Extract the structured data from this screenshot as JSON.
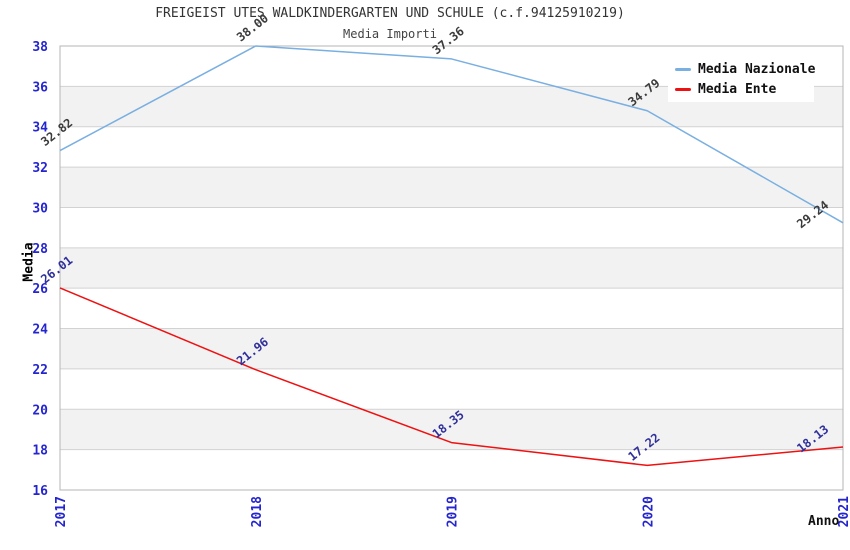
{
  "chart_data": {
    "type": "line",
    "title": "FREIGEIST UTES WALDKINDERGARTEN UND SCHULE (c.f.94125910219)",
    "subtitle": "Media Importi",
    "x": [
      "2017",
      "2018",
      "2019",
      "2020",
      "2021"
    ],
    "series": [
      {
        "name": "Media Nazionale",
        "color": "#79AFE1",
        "label_color": "#3B3B3B",
        "values": [
          32.82,
          38.0,
          37.36,
          34.79,
          29.24
        ]
      },
      {
        "name": "Media Ente",
        "color": "#EE1111",
        "label_color": "#30309B",
        "values": [
          26.01,
          21.96,
          18.35,
          17.22,
          18.13
        ]
      }
    ],
    "xlabel": "Anno",
    "ylabel": "Media",
    "ylim": [
      16,
      38
    ],
    "yticks": [
      16,
      18,
      20,
      22,
      24,
      26,
      28,
      30,
      32,
      34,
      36,
      38
    ],
    "grid": true,
    "legend_position": "top-right",
    "colors": {
      "tick_label": "#2525D0",
      "grid_line": "#D2D2D2",
      "plot_border": "#B5B5B5",
      "band_fill": "#F2F2F2",
      "background": "#FFFFFF"
    }
  }
}
